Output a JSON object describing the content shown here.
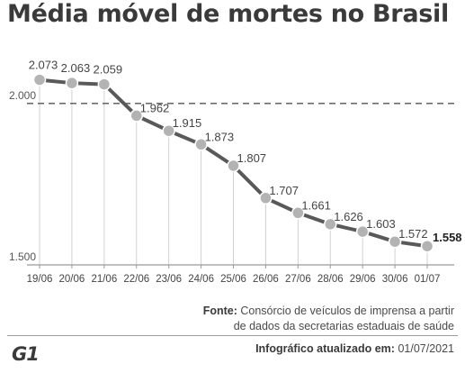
{
  "title": "Média móvel de mortes no Brasil",
  "source": {
    "label": "Fonte:",
    "line1": "Consórcio de veículos de imprensa a partir",
    "line2": "de dados da secretarias estaduais de saúde"
  },
  "footer": {
    "logo": "G1",
    "updated_label": "Infográfico atualizado em:",
    "updated_date": "01/07/2021"
  },
  "chart_data": {
    "type": "line",
    "title": "Média móvel de mortes no Brasil",
    "categories": [
      "19/06",
      "20/06",
      "21/06",
      "22/06",
      "23/06",
      "24/06",
      "25/06",
      "26/06",
      "27/06",
      "28/06",
      "29/06",
      "30/06",
      "01/07"
    ],
    "series": [
      {
        "values": [
          2073,
          2063,
          2059,
          1962,
          1915,
          1873,
          1807,
          1707,
          1661,
          1626,
          1603,
          1572,
          1558
        ],
        "labels": [
          "2.073",
          "2.063",
          "2.059",
          "1.962",
          "1.915",
          "1.873",
          "1.807",
          "1.707",
          "1.661",
          "1.626",
          "1.603",
          "1.572",
          "1.558"
        ]
      }
    ],
    "yticks": [
      {
        "value": 2000,
        "label": "2.000"
      },
      {
        "value": 1500,
        "label": "1.500"
      }
    ],
    "reference_line": {
      "value": 2000,
      "style": "dashed"
    },
    "ylim": [
      1500,
      2150
    ],
    "vertical_gridlines": true,
    "last_label_bold": true,
    "colors": {
      "line": "#595959",
      "marker": "#b3b3b3",
      "grid": "#d0d0d0",
      "axis": "#9a9a9a"
    }
  }
}
